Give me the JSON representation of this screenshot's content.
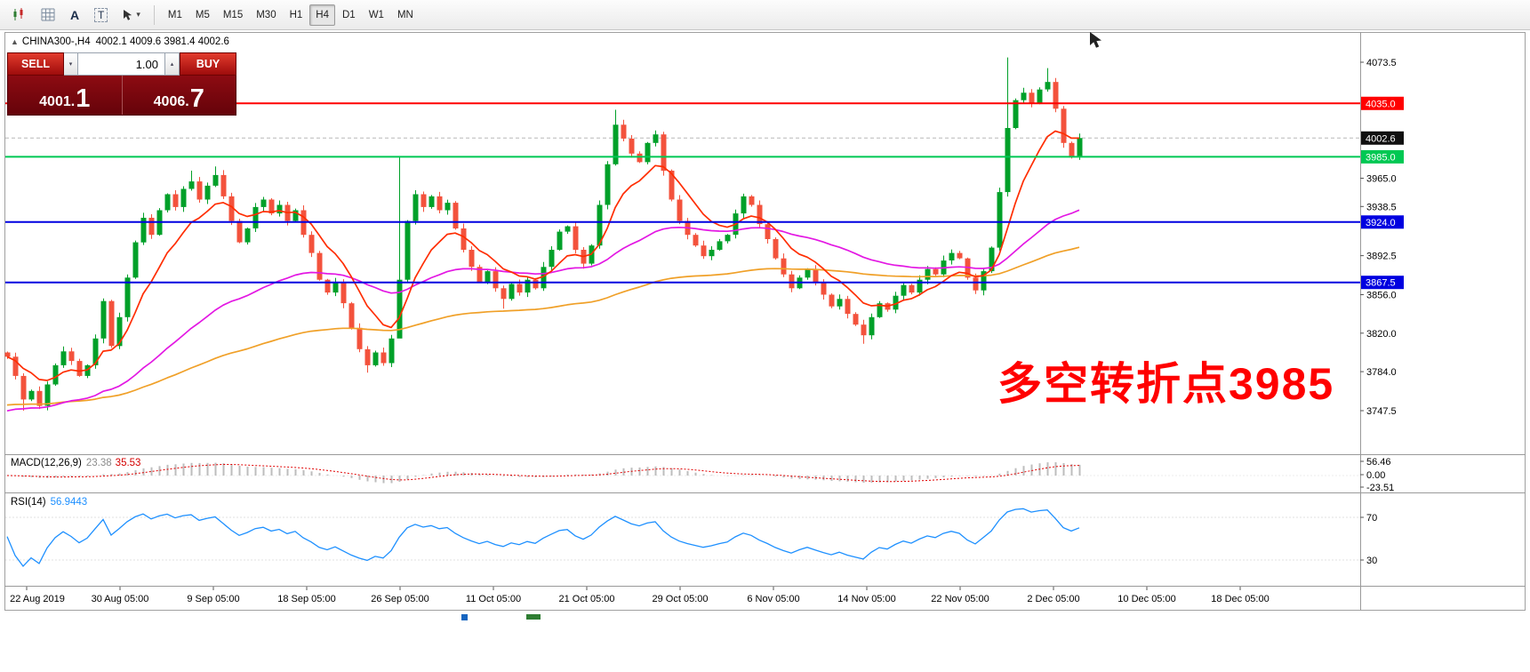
{
  "toolbar": {
    "tools": {
      "text_tool_label": "A",
      "frame_tool_label": "T"
    },
    "timeframes": [
      "M1",
      "M5",
      "M15",
      "M30",
      "H1",
      "H4",
      "D1",
      "W1",
      "MN"
    ],
    "active_timeframe": "H4"
  },
  "icons": {
    "chevron_down": "▾",
    "spinner_up": "▴",
    "spinner_down": "▾",
    "collapse": "▲"
  },
  "chart": {
    "symbol_period": "CHINA300-,H4",
    "ohlc_text": "4002.1 4009.6 3981.4 4002.6",
    "last_price_label": "4002.6",
    "trade_panel": {
      "sell_label": "SELL",
      "buy_label": "BUY",
      "volume": "1.00",
      "bid": "4001.1",
      "ask": "4006.7",
      "bid_main": "4001.",
      "bid_big": "1",
      "ask_main": "4006.",
      "ask_big": "7"
    },
    "annotation": {
      "text": "多空转折点3985",
      "color": "#FF0000"
    },
    "levels": [
      {
        "value": 4035.0,
        "label": "4035.0",
        "color": "#FF0000"
      },
      {
        "value": 3985.0,
        "label": "3985.0",
        "color": "#00C853"
      },
      {
        "value": 3924.0,
        "label": "3924.0",
        "color": "#0000E0"
      },
      {
        "value": 3867.5,
        "label": "3867.5",
        "color": "#0000E0"
      }
    ],
    "price_ticks": [
      "4073.5",
      "3965.0",
      "3938.5",
      "3892.5",
      "3856.0",
      "3820.0",
      "3784.0",
      "3747.5"
    ],
    "time_labels": [
      "22 Aug 2019",
      "30 Aug 05:00",
      "9 Sep 05:00",
      "18 Sep 05:00",
      "26 Sep 05:00",
      "11 Oct 05:00",
      "21 Oct 05:00",
      "29 Oct 05:00",
      "6 Nov 05:00",
      "14 Nov 05:00",
      "22 Nov 05:00",
      "2 Dec 05:00",
      "10 Dec 05:00",
      "18 Dec 05:00"
    ]
  },
  "indicators": {
    "macd": {
      "name": "MACD(12,26,9)",
      "main_value": "23.38",
      "signal_value": "35.53",
      "axis_labels": [
        "56.46",
        "0.00",
        "-23.51"
      ]
    },
    "rsi": {
      "name": "RSI(14)",
      "value": "56.9443",
      "levels": [
        70,
        30
      ]
    }
  },
  "chart_data": {
    "type": "candlestick",
    "symbol": "CHINA300-",
    "period": "H4",
    "current_ohlc": {
      "open": 4002.1,
      "high": 4009.6,
      "low": 3981.4,
      "close": 4002.6
    },
    "bid": 4001.1,
    "ask": 4006.7,
    "last_price": 4002.6,
    "price_axis": {
      "visible_min": 3747.5,
      "visible_max": 4073.5
    },
    "horizontal_levels": [
      4035.0,
      3985.0,
      3924.0,
      3867.5
    ],
    "closes": [
      3798,
      3780,
      3758,
      3766,
      3752,
      3772,
      3790,
      3803,
      3794,
      3780,
      3790,
      3815,
      3850,
      3808,
      3835,
      3872,
      3905,
      3928,
      3912,
      3935,
      3950,
      3938,
      3955,
      3962,
      3945,
      3958,
      3968,
      3948,
      3925,
      3905,
      3918,
      3938,
      3945,
      3932,
      3940,
      3925,
      3935,
      3912,
      3895,
      3870,
      3858,
      3868,
      3848,
      3825,
      3805,
      3790,
      3802,
      3792,
      3815,
      3870,
      3925,
      3950,
      3938,
      3948,
      3935,
      3942,
      3918,
      3898,
      3882,
      3868,
      3878,
      3862,
      3852,
      3866,
      3858,
      3870,
      3862,
      3882,
      3898,
      3915,
      3920,
      3898,
      3885,
      3902,
      3940,
      3978,
      4015,
      4002,
      3988,
      3980,
      3998,
      4006,
      3972,
      3945,
      3925,
      3912,
      3902,
      3892,
      3898,
      3906,
      3912,
      3932,
      3948,
      3940,
      3922,
      3908,
      3890,
      3875,
      3862,
      3872,
      3880,
      3868,
      3856,
      3845,
      3852,
      3838,
      3828,
      3818,
      3835,
      3848,
      3842,
      3855,
      3865,
      3858,
      3870,
      3880,
      3875,
      3888,
      3895,
      3890,
      3872,
      3860,
      3878,
      3900,
      3952,
      4012,
      4038,
      4045,
      4035,
      4048,
      4055,
      4030,
      3998,
      3985,
      4002.6
    ],
    "wick_overrides": {
      "2": {
        "low": 3747.5
      },
      "23": {
        "high": 3972
      },
      "26": {
        "high": 3976
      },
      "45": {
        "low": 3783
      },
      "49": {
        "high": 3985,
        "low": 3849
      },
      "62": {
        "low": 3843
      },
      "76": {
        "high": 4029
      },
      "107": {
        "low": 3810
      },
      "125": {
        "high": 4078
      },
      "130": {
        "high": 4068
      }
    },
    "moving_averages": [
      {
        "name": "slow",
        "period": 110,
        "seed": 3752,
        "color": "#F0A028"
      },
      {
        "name": "mid",
        "period": 44,
        "seed": 3745,
        "color": "#E318E3"
      },
      {
        "name": "fast",
        "period": 9,
        "color": "#FF2D00"
      }
    ],
    "macd_params": {
      "fast": 12,
      "slow": 26,
      "signal": 9
    },
    "rsi_period": 14
  },
  "colors": {
    "candle_up": "#00A029",
    "candle_down": "#F3523C",
    "macd_hist": "#BDBDBD",
    "macd_signal": "#E00000",
    "rsi": "#1E90FF",
    "badge_dark": "#101010"
  }
}
